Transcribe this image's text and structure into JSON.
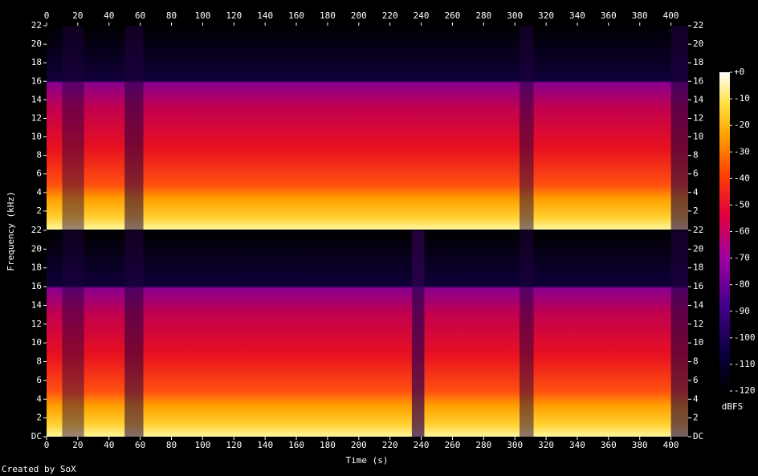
{
  "chart_data": {
    "type": "spectrogram",
    "xlabel": "Time (s)",
    "ylabel": "Frequency (kHz)",
    "xlim": [
      0,
      411
    ],
    "xticks": [
      0,
      20,
      40,
      60,
      80,
      100,
      120,
      140,
      160,
      180,
      200,
      220,
      240,
      260,
      280,
      300,
      320,
      340,
      360,
      380,
      400
    ],
    "channels": [
      {
        "ylim": [
          0,
          22
        ],
        "yticks": [
          2,
          4,
          6,
          8,
          10,
          12,
          14,
          16,
          18,
          20,
          22
        ]
      },
      {
        "ylim": [
          0,
          22
        ],
        "yticks": [
          {
            "value": 0,
            "label": "DC"
          },
          2,
          4,
          6,
          8,
          10,
          12,
          14,
          16,
          18,
          20,
          22
        ]
      }
    ],
    "colorbar": {
      "label": "dBFS",
      "lim": [
        -120,
        0
      ],
      "ticks": [
        {
          "value": 0,
          "label": "+0"
        },
        -10,
        -20,
        -30,
        -40,
        -50,
        -60,
        -70,
        -80,
        -90,
        -100,
        -110,
        -120
      ]
    }
  },
  "footer": "Created by SoX"
}
